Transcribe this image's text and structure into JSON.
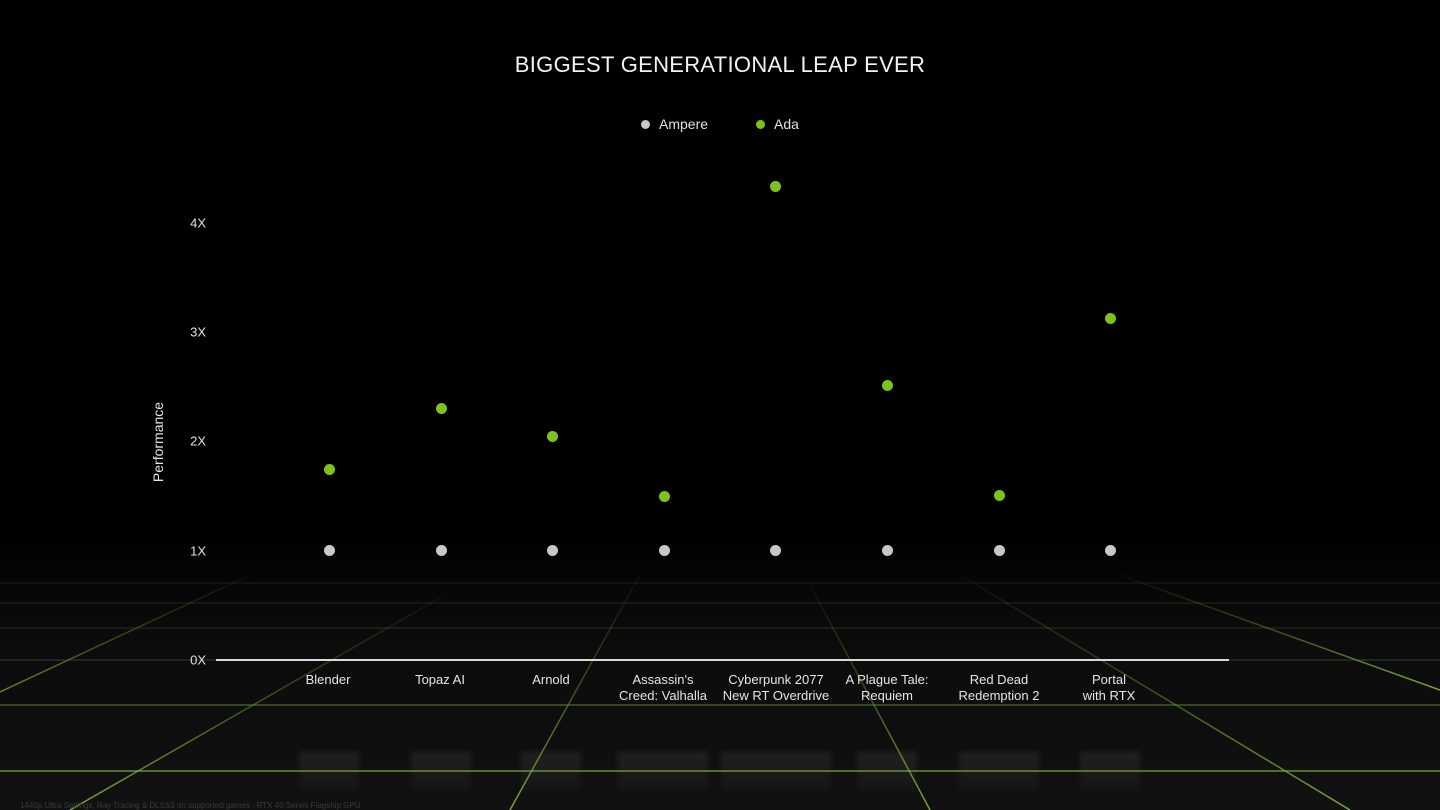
{
  "chart_data": {
    "type": "scatter",
    "title": "BIGGEST GENERATIONAL LEAP EVER",
    "xlabel": "",
    "ylabel": "Performance",
    "ylim": [
      0,
      4.4
    ],
    "yticks": [
      "0X",
      "1X",
      "2X",
      "3X",
      "4X"
    ],
    "grid": false,
    "legend_position": "top-center",
    "categories": [
      "Blender",
      "Topaz AI",
      "Arnold",
      "Assassin's\nCreed: Valhalla",
      "Cyberpunk 2077\nNew RT Overdrive",
      "A Plague Tale:\nRequiem",
      "Red Dead\nRedemption 2",
      "Portal\nwith RTX"
    ],
    "series": [
      {
        "name": "Ampere",
        "color": "#c8c8c8",
        "values": [
          1,
          1,
          1,
          1,
          1,
          1,
          1,
          1
        ]
      },
      {
        "name": "Ada",
        "color": "#7dc31c",
        "values": [
          1.74,
          2.3,
          2.05,
          1.5,
          4.34,
          2.51,
          1.51,
          3.13
        ]
      }
    ],
    "footnote": "1440p Ultra Settings, Ray Tracing & DLSS3 on supported games . RTX 40 Series Flagship GPU"
  },
  "legend": [
    {
      "label": "Ampere",
      "color": "#c8c8c8"
    },
    {
      "label": "Ada",
      "color": "#7dc31c"
    }
  ]
}
